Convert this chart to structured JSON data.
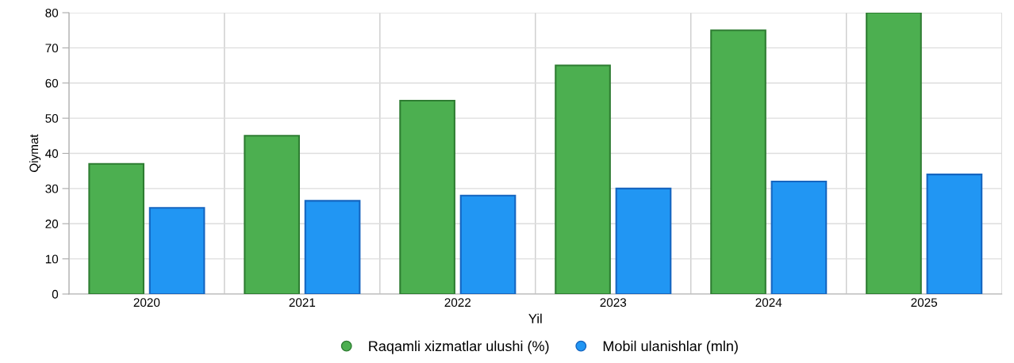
{
  "chart_data": {
    "type": "bar",
    "xlabel": "Yil",
    "ylabel": "Qiymat",
    "categories": [
      "2020",
      "2021",
      "2022",
      "2023",
      "2024",
      "2025"
    ],
    "series": [
      {
        "name": "Raqamli xizmatlar ulushi (%)",
        "color": "#4caf50",
        "values": [
          37,
          45,
          55,
          65,
          75,
          80
        ]
      },
      {
        "name": "Mobil ulanishlar (mln)",
        "color": "#2196f3",
        "values": [
          24.5,
          26.5,
          28,
          30,
          32,
          34
        ]
      }
    ],
    "ylim": [
      0,
      80
    ],
    "yticks": [
      0,
      10,
      20,
      30,
      40,
      50,
      60,
      70,
      80
    ],
    "grid": true,
    "legend": "bottom"
  }
}
